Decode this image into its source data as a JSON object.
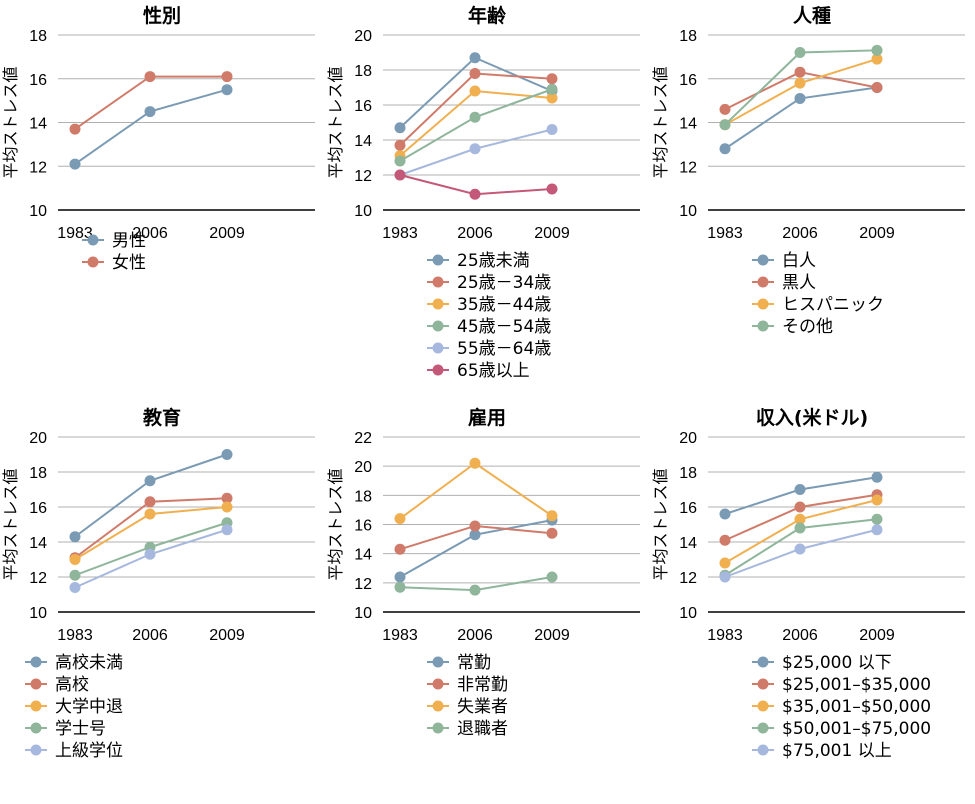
{
  "chart_data": [
    {
      "type": "line",
      "title": "性別",
      "ylabel": "平均ストレス値",
      "categories": [
        "1983",
        "2006",
        "2009"
      ],
      "ylim": [
        10,
        18
      ],
      "yticks": [
        10,
        12,
        14,
        16,
        18
      ],
      "grid": true,
      "legend_position": "bottom",
      "series": [
        {
          "name": "男性",
          "color": "#7b9bb5",
          "values": [
            12.1,
            14.5,
            15.5
          ]
        },
        {
          "name": "女性",
          "color": "#d07b6a",
          "values": [
            13.7,
            16.1,
            16.1
          ]
        }
      ]
    },
    {
      "type": "line",
      "title": "年齢",
      "ylabel": "平均ストレス値",
      "categories": [
        "1983",
        "2006",
        "2009"
      ],
      "ylim": [
        10,
        20
      ],
      "yticks": [
        10,
        12,
        14,
        16,
        18,
        20
      ],
      "grid": true,
      "legend_position": "bottom",
      "series": [
        {
          "name": "25歳未満",
          "color": "#7b9bb5",
          "values": [
            14.7,
            18.7,
            16.8
          ]
        },
        {
          "name": "25歳－34歳",
          "color": "#d07b6a",
          "values": [
            13.7,
            17.8,
            17.5
          ]
        },
        {
          "name": "35歳－44歳",
          "color": "#f0b050",
          "values": [
            13.1,
            16.8,
            16.4
          ]
        },
        {
          "name": "45歳－54歳",
          "color": "#8fb59b",
          "values": [
            12.8,
            15.3,
            16.9
          ]
        },
        {
          "name": "55歳－64歳",
          "color": "#a6b8de",
          "values": [
            12.0,
            13.5,
            14.6
          ]
        },
        {
          "name": "65歳以上",
          "color": "#c45878",
          "values": [
            12.0,
            10.9,
            11.2
          ]
        }
      ]
    },
    {
      "type": "line",
      "title": "人種",
      "ylabel": "平均ストレス値",
      "categories": [
        "1983",
        "2006",
        "2009"
      ],
      "ylim": [
        10,
        18
      ],
      "yticks": [
        10,
        12,
        14,
        16,
        18
      ],
      "grid": true,
      "legend_position": "bottom",
      "series": [
        {
          "name": "白人",
          "color": "#7b9bb5",
          "values": [
            12.8,
            15.1,
            15.6
          ]
        },
        {
          "name": "黒人",
          "color": "#d07b6a",
          "values": [
            14.6,
            16.3,
            15.6
          ]
        },
        {
          "name": "ヒスパニック",
          "color": "#f0b050",
          "values": [
            13.9,
            15.8,
            16.9
          ]
        },
        {
          "name": "その他",
          "color": "#8fb59b",
          "values": [
            13.9,
            17.2,
            17.3
          ]
        }
      ]
    },
    {
      "type": "line",
      "title": "教育",
      "ylabel": "平均ストレス値",
      "categories": [
        "1983",
        "2006",
        "2009"
      ],
      "ylim": [
        10,
        20
      ],
      "yticks": [
        10,
        12,
        14,
        16,
        18,
        20
      ],
      "grid": true,
      "legend_position": "bottom",
      "series": [
        {
          "name": "高校未満",
          "color": "#7b9bb5",
          "values": [
            14.3,
            17.5,
            19.0
          ]
        },
        {
          "name": "高校",
          "color": "#d07b6a",
          "values": [
            13.1,
            16.3,
            16.5
          ]
        },
        {
          "name": "大学中退",
          "color": "#f0b050",
          "values": [
            13.0,
            15.6,
            16.0
          ]
        },
        {
          "name": "学士号",
          "color": "#8fb59b",
          "values": [
            12.1,
            13.7,
            15.1
          ]
        },
        {
          "name": "上級学位",
          "color": "#a6b8de",
          "values": [
            11.4,
            13.3,
            14.7
          ]
        }
      ]
    },
    {
      "type": "line",
      "title": "雇用",
      "ylabel": "平均ストレス値",
      "categories": [
        "1983",
        "2006",
        "2009"
      ],
      "ylim": [
        10,
        22
      ],
      "yticks": [
        10,
        12,
        14,
        16,
        18,
        20,
        22
      ],
      "grid": true,
      "legend_position": "bottom",
      "series": [
        {
          "name": "常勤",
          "color": "#7b9bb5",
          "values": [
            12.4,
            15.3,
            16.3
          ]
        },
        {
          "name": "非常勤",
          "color": "#d07b6a",
          "values": [
            14.3,
            15.9,
            15.4
          ]
        },
        {
          "name": "失業者",
          "color": "#f0b050",
          "values": [
            16.4,
            20.2,
            16.6
          ]
        },
        {
          "name": "退職者",
          "color": "#8fb59b",
          "values": [
            11.7,
            11.5,
            12.4
          ]
        }
      ]
    },
    {
      "type": "line",
      "title": "収入(米ドル)",
      "ylabel": "平均ストレス値",
      "categories": [
        "1983",
        "2006",
        "2009"
      ],
      "ylim": [
        10,
        20
      ],
      "yticks": [
        10,
        12,
        14,
        16,
        18,
        20
      ],
      "grid": true,
      "legend_position": "bottom",
      "series": [
        {
          "name": "$25,000 以下",
          "color": "#7b9bb5",
          "values": [
            15.6,
            17.0,
            17.7
          ]
        },
        {
          "name": "$25,001–$35,000",
          "color": "#d07b6a",
          "values": [
            14.1,
            16.0,
            16.7
          ]
        },
        {
          "name": "$35,001–$50,000",
          "color": "#f0b050",
          "values": [
            12.8,
            15.3,
            16.4
          ]
        },
        {
          "name": "$50,001–$75,000",
          "color": "#8fb59b",
          "values": [
            12.1,
            14.8,
            15.3
          ]
        },
        {
          "name": "$75,001 以上",
          "color": "#a6b8de",
          "values": [
            12.0,
            13.6,
            14.7
          ]
        }
      ]
    }
  ]
}
